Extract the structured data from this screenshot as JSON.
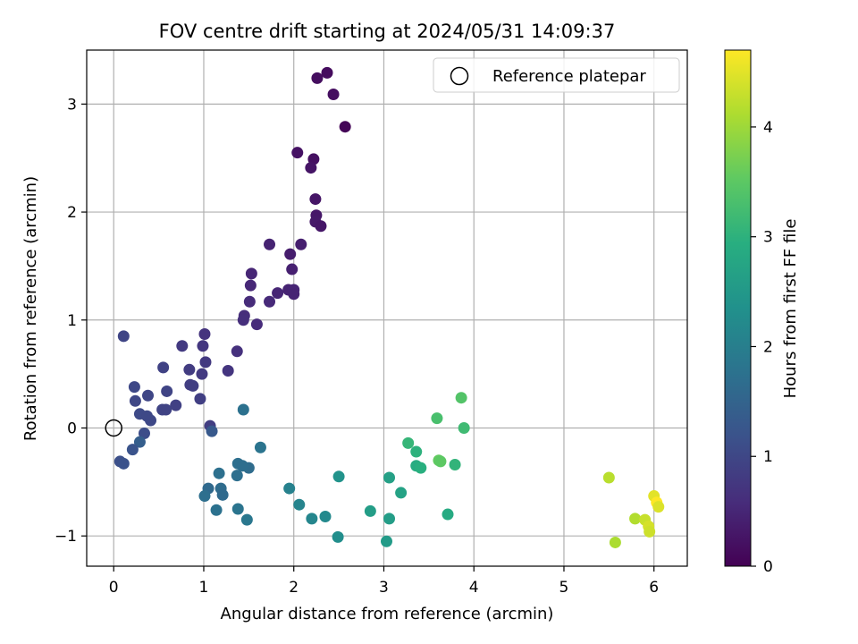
{
  "chart_data": {
    "type": "scatter",
    "title": "FOV centre drift starting at 2024/05/31 14:09:37",
    "xlabel": "Angular distance from reference (arcmin)",
    "ylabel": "Rotation from reference (arcmin)",
    "xlim": [
      -0.3,
      6.37
    ],
    "ylim": [
      -1.28,
      3.5
    ],
    "xticks": [
      0,
      1,
      2,
      3,
      4,
      5,
      6
    ],
    "yticks": [
      -1,
      0,
      1,
      2,
      3
    ],
    "grid": true,
    "legend": {
      "position": "top-right",
      "entries": [
        "Reference platepar"
      ]
    },
    "reference_point": {
      "x": 0,
      "y": 0
    },
    "colorbar": {
      "label": "Hours from first FF file",
      "min": 0,
      "max": 4.7,
      "ticks": [
        0,
        1,
        2,
        3,
        4
      ],
      "colormap": "viridis"
    },
    "points": [
      {
        "x": 2.37,
        "y": 3.29,
        "c": 0.15
      },
      {
        "x": 2.26,
        "y": 3.24,
        "c": 0.17
      },
      {
        "x": 2.44,
        "y": 3.09,
        "c": 0.18
      },
      {
        "x": 2.57,
        "y": 2.79,
        "c": 0.05
      },
      {
        "x": 2.04,
        "y": 2.55,
        "c": 0.22
      },
      {
        "x": 2.22,
        "y": 2.49,
        "c": 0.2
      },
      {
        "x": 2.19,
        "y": 2.41,
        "c": 0.25
      },
      {
        "x": 2.24,
        "y": 2.12,
        "c": 0.27
      },
      {
        "x": 2.25,
        "y": 1.97,
        "c": 0.3
      },
      {
        "x": 2.24,
        "y": 1.91,
        "c": 0.32
      },
      {
        "x": 2.3,
        "y": 1.87,
        "c": 0.28
      },
      {
        "x": 1.73,
        "y": 1.7,
        "c": 0.45
      },
      {
        "x": 2.08,
        "y": 1.7,
        "c": 0.4
      },
      {
        "x": 1.96,
        "y": 1.61,
        "c": 0.37
      },
      {
        "x": 1.98,
        "y": 1.47,
        "c": 0.42
      },
      {
        "x": 1.53,
        "y": 1.43,
        "c": 0.5
      },
      {
        "x": 1.52,
        "y": 1.32,
        "c": 0.52
      },
      {
        "x": 1.82,
        "y": 1.25,
        "c": 0.5
      },
      {
        "x": 1.94,
        "y": 1.28,
        "c": 0.45
      },
      {
        "x": 2.0,
        "y": 1.28,
        "c": 0.48
      },
      {
        "x": 2.0,
        "y": 1.24,
        "c": 0.46
      },
      {
        "x": 1.73,
        "y": 1.17,
        "c": 0.55
      },
      {
        "x": 1.51,
        "y": 1.17,
        "c": 0.57
      },
      {
        "x": 1.45,
        "y": 1.04,
        "c": 0.6
      },
      {
        "x": 1.44,
        "y": 1.0,
        "c": 0.62
      },
      {
        "x": 1.59,
        "y": 0.96,
        "c": 0.58
      },
      {
        "x": 1.37,
        "y": 0.71,
        "c": 0.65
      },
      {
        "x": 0.11,
        "y": 0.85,
        "c": 0.97
      },
      {
        "x": 1.01,
        "y": 0.87,
        "c": 0.7
      },
      {
        "x": 0.76,
        "y": 0.76,
        "c": 0.8
      },
      {
        "x": 0.99,
        "y": 0.76,
        "c": 0.75
      },
      {
        "x": 1.02,
        "y": 0.61,
        "c": 0.78
      },
      {
        "x": 0.55,
        "y": 0.56,
        "c": 0.92
      },
      {
        "x": 0.84,
        "y": 0.54,
        "c": 0.82
      },
      {
        "x": 1.27,
        "y": 0.53,
        "c": 0.72
      },
      {
        "x": 0.98,
        "y": 0.5,
        "c": 0.8
      },
      {
        "x": 0.85,
        "y": 0.4,
        "c": 0.85
      },
      {
        "x": 0.88,
        "y": 0.39,
        "c": 0.86
      },
      {
        "x": 0.23,
        "y": 0.38,
        "c": 1.02
      },
      {
        "x": 0.59,
        "y": 0.34,
        "c": 0.95
      },
      {
        "x": 0.38,
        "y": 0.3,
        "c": 0.98
      },
      {
        "x": 0.96,
        "y": 0.27,
        "c": 0.88
      },
      {
        "x": 0.24,
        "y": 0.25,
        "c": 1.0
      },
      {
        "x": 0.69,
        "y": 0.21,
        "c": 0.9
      },
      {
        "x": 0.54,
        "y": 0.17,
        "c": 0.95
      },
      {
        "x": 0.58,
        "y": 0.17,
        "c": 0.93
      },
      {
        "x": 0.29,
        "y": 0.13,
        "c": 1.05
      },
      {
        "x": 0.37,
        "y": 0.11,
        "c": 1.03
      },
      {
        "x": 0.41,
        "y": 0.07,
        "c": 1.02
      },
      {
        "x": 1.07,
        "y": 0.02,
        "c": 0.85
      },
      {
        "x": 1.09,
        "y": -0.03,
        "c": 1.3
      },
      {
        "x": 0.34,
        "y": -0.05,
        "c": 1.1
      },
      {
        "x": 0.29,
        "y": -0.13,
        "c": 1.4
      },
      {
        "x": 0.21,
        "y": -0.2,
        "c": 1.2
      },
      {
        "x": 0.07,
        "y": -0.31,
        "c": 1.15
      },
      {
        "x": 0.11,
        "y": -0.33,
        "c": 1.18
      },
      {
        "x": 1.44,
        "y": 0.17,
        "c": 1.75
      },
      {
        "x": 1.63,
        "y": -0.18,
        "c": 1.8
      },
      {
        "x": 1.38,
        "y": -0.33,
        "c": 1.7
      },
      {
        "x": 1.5,
        "y": -0.37,
        "c": 1.65
      },
      {
        "x": 1.43,
        "y": -0.35,
        "c": 1.68
      },
      {
        "x": 1.17,
        "y": -0.42,
        "c": 1.72
      },
      {
        "x": 1.37,
        "y": -0.44,
        "c": 1.7
      },
      {
        "x": 1.05,
        "y": -0.56,
        "c": 1.6
      },
      {
        "x": 1.19,
        "y": -0.56,
        "c": 1.65
      },
      {
        "x": 1.21,
        "y": -0.62,
        "c": 1.62
      },
      {
        "x": 1.01,
        "y": -0.63,
        "c": 1.7
      },
      {
        "x": 1.38,
        "y": -0.75,
        "c": 1.8
      },
      {
        "x": 1.14,
        "y": -0.76,
        "c": 1.75
      },
      {
        "x": 1.48,
        "y": -0.85,
        "c": 1.85
      },
      {
        "x": 1.95,
        "y": -0.56,
        "c": 2.05
      },
      {
        "x": 2.06,
        "y": -0.71,
        "c": 2.1
      },
      {
        "x": 2.2,
        "y": -0.84,
        "c": 2.15
      },
      {
        "x": 2.35,
        "y": -0.82,
        "c": 2.2
      },
      {
        "x": 2.5,
        "y": -0.45,
        "c": 2.4
      },
      {
        "x": 2.49,
        "y": -1.01,
        "c": 2.3
      },
      {
        "x": 2.85,
        "y": -0.77,
        "c": 2.6
      },
      {
        "x": 3.06,
        "y": -0.46,
        "c": 2.65
      },
      {
        "x": 3.06,
        "y": -0.84,
        "c": 2.6
      },
      {
        "x": 3.03,
        "y": -1.05,
        "c": 2.55
      },
      {
        "x": 3.19,
        "y": -0.6,
        "c": 2.7
      },
      {
        "x": 3.27,
        "y": -0.14,
        "c": 3.1
      },
      {
        "x": 3.36,
        "y": -0.22,
        "c": 3.0
      },
      {
        "x": 3.36,
        "y": -0.35,
        "c": 2.9
      },
      {
        "x": 3.41,
        "y": -0.37,
        "c": 2.95
      },
      {
        "x": 3.59,
        "y": 0.09,
        "c": 3.3
      },
      {
        "x": 3.61,
        "y": -0.3,
        "c": 3.55
      },
      {
        "x": 3.63,
        "y": -0.31,
        "c": 3.5
      },
      {
        "x": 3.71,
        "y": -0.8,
        "c": 2.85
      },
      {
        "x": 3.79,
        "y": -0.34,
        "c": 3.05
      },
      {
        "x": 3.86,
        "y": 0.28,
        "c": 3.4
      },
      {
        "x": 3.89,
        "y": 0.0,
        "c": 3.2
      },
      {
        "x": 5.5,
        "y": -0.46,
        "c": 4.2
      },
      {
        "x": 5.57,
        "y": -1.06,
        "c": 4.1
      },
      {
        "x": 5.79,
        "y": -0.84,
        "c": 4.15
      },
      {
        "x": 5.9,
        "y": -0.85,
        "c": 4.3
      },
      {
        "x": 5.94,
        "y": -0.91,
        "c": 4.4
      },
      {
        "x": 5.95,
        "y": -0.96,
        "c": 4.35
      },
      {
        "x": 6.0,
        "y": -0.63,
        "c": 4.5
      },
      {
        "x": 6.03,
        "y": -0.69,
        "c": 4.7
      },
      {
        "x": 6.05,
        "y": -0.73,
        "c": 4.45
      }
    ]
  }
}
